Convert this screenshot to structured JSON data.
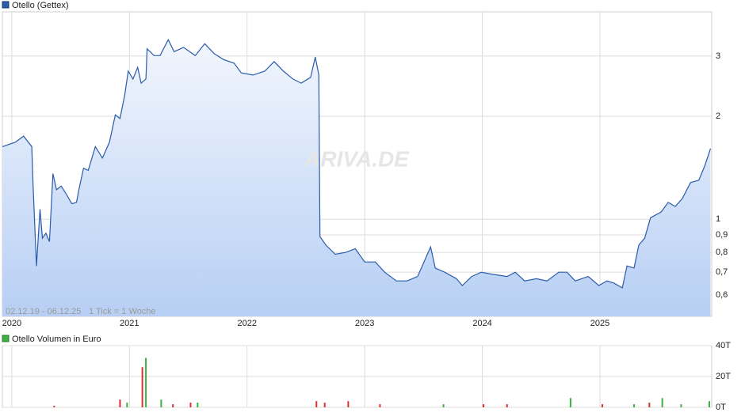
{
  "chart_data": [
    {
      "type": "line",
      "title": "Otello (Gettex)",
      "range_label": "02.12.19 - 06.12.25",
      "tick_note": "1 Tick = 1 Woche",
      "watermark": "ARIVA.DE",
      "log_scale": true,
      "grid": true,
      "color": "#2a5caa",
      "xlim": [
        2019.92,
        2025.95
      ],
      "xticks": [
        2020,
        2021,
        2022,
        2023,
        2024,
        2025
      ],
      "ylim": [
        0.52,
        4.04
      ],
      "yticks": [
        {
          "value": 0.6,
          "label": "0,6"
        },
        {
          "value": 0.7,
          "label": "0,7"
        },
        {
          "value": 0.8,
          "label": "0,8"
        },
        {
          "value": 0.9,
          "label": "0,9"
        },
        1,
        2,
        3
      ],
      "x": [
        2019.92,
        2020.03,
        2020.1,
        2020.17,
        2020.18,
        2020.21,
        2020.24,
        2020.26,
        2020.29,
        2020.32,
        2020.35,
        2020.38,
        2020.42,
        2020.46,
        2020.51,
        2020.55,
        2020.57,
        2020.61,
        2020.65,
        2020.71,
        2020.77,
        2020.83,
        2020.88,
        2020.92,
        2020.96,
        2020.99,
        2021.03,
        2021.07,
        2021.1,
        2021.14,
        2021.15,
        2021.21,
        2021.26,
        2021.33,
        2021.38,
        2021.46,
        2021.56,
        2021.64,
        2021.72,
        2021.8,
        2021.89,
        2021.95,
        2022.05,
        2022.15,
        2022.23,
        2022.31,
        2022.39,
        2022.46,
        2022.54,
        2022.58,
        2022.61,
        2022.62,
        2022.67,
        2022.75,
        2022.84,
        2022.92,
        2023.0,
        2023.09,
        2023.17,
        2023.27,
        2023.36,
        2023.45,
        2023.56,
        2023.6,
        2023.68,
        2023.78,
        2023.83,
        2023.91,
        2023.99,
        2024.09,
        2024.21,
        2024.28,
        2024.36,
        2024.46,
        2024.55,
        2024.65,
        2024.72,
        2024.79,
        2024.9,
        2024.99,
        2025.06,
        2025.12,
        2025.19,
        2025.23,
        2025.29,
        2025.33,
        2025.38,
        2025.43,
        2025.52,
        2025.58,
        2025.64,
        2025.7,
        2025.77,
        2025.84,
        2025.89,
        2025.94
      ],
      "values": [
        1.63,
        1.68,
        1.75,
        1.63,
        1.28,
        0.73,
        1.07,
        0.88,
        0.91,
        0.86,
        1.36,
        1.22,
        1.25,
        1.19,
        1.11,
        1.12,
        1.22,
        1.41,
        1.39,
        1.63,
        1.51,
        1.68,
        2.02,
        1.97,
        2.31,
        2.71,
        2.57,
        2.78,
        2.5,
        2.57,
        3.15,
        3.01,
        3.01,
        3.35,
        3.09,
        3.18,
        3.01,
        3.26,
        3.05,
        2.93,
        2.86,
        2.68,
        2.64,
        2.71,
        2.89,
        2.71,
        2.57,
        2.5,
        2.6,
        2.98,
        2.64,
        0.89,
        0.84,
        0.79,
        0.8,
        0.82,
        0.75,
        0.75,
        0.7,
        0.66,
        0.66,
        0.68,
        0.83,
        0.72,
        0.7,
        0.67,
        0.64,
        0.68,
        0.7,
        0.69,
        0.68,
        0.7,
        0.66,
        0.67,
        0.66,
        0.7,
        0.7,
        0.66,
        0.68,
        0.64,
        0.66,
        0.65,
        0.63,
        0.73,
        0.72,
        0.84,
        0.88,
        1.01,
        1.05,
        1.12,
        1.09,
        1.15,
        1.28,
        1.3,
        1.43,
        1.61
      ]
    },
    {
      "type": "bar",
      "title": "Otello Volumen in Euro",
      "color": "#3cb043",
      "xlim": [
        2019.92,
        2025.95
      ],
      "ylim": [
        0,
        40000
      ],
      "yticks": [
        {
          "value": 0,
          "label": "0T"
        },
        {
          "value": 20000,
          "label": "20T"
        },
        {
          "value": 40000,
          "label": "40T"
        }
      ],
      "x": [
        2020.36,
        2020.92,
        2020.98,
        2021.11,
        2021.14,
        2021.27,
        2021.37,
        2021.52,
        2021.58,
        2022.59,
        2022.66,
        2022.86,
        2023.13,
        2023.67,
        2024.01,
        2024.21,
        2024.75,
        2025.02,
        2025.29,
        2025.42,
        2025.53,
        2025.69,
        2025.93
      ],
      "values": [
        1000,
        5000,
        3000,
        26000,
        32000,
        5000,
        2000,
        3000,
        3000,
        4000,
        3000,
        4000,
        2000,
        2000,
        2000,
        2000,
        6000,
        2000,
        2000,
        3000,
        6000,
        2000,
        4000
      ],
      "bar_colors": [
        "#d93030",
        "#d93030",
        "#3cb043",
        "#d93030",
        "#3cb043",
        "#3cb043",
        "#d93030",
        "#d93030",
        "#3cb043",
        "#d93030",
        "#d93030",
        "#d93030",
        "#d93030",
        "#3cb043",
        "#d93030",
        "#d93030",
        "#3cb043",
        "#d93030",
        "#3cb043",
        "#d93030",
        "#3cb043",
        "#3cb043",
        "#3cb043"
      ]
    }
  ]
}
